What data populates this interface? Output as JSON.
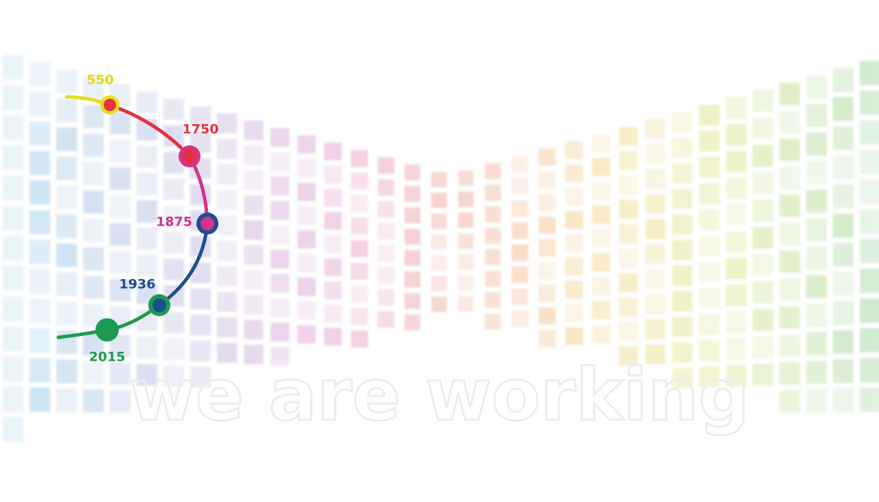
{
  "timeline": {
    "points": [
      {
        "label": "550"
      },
      {
        "label": "1750"
      },
      {
        "label": "1875"
      },
      {
        "label": "1936"
      },
      {
        "label": "2015"
      }
    ]
  },
  "watermark": "we are working"
}
